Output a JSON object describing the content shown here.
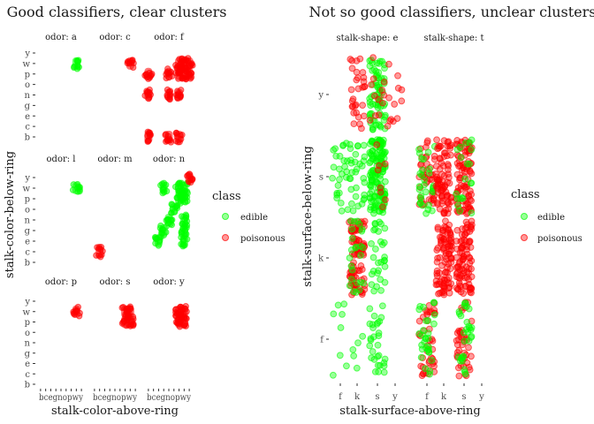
{
  "colors": {
    "edible": "#00ff00",
    "poisonous": "#ff0000"
  },
  "chart_data": [
    {
      "type": "scatter",
      "subtype": "jittered facet grid",
      "title": "Good classifiers, clear clusters",
      "xlabel": "stalk-color-above-ring",
      "ylabel": "stalk-color-below-ring",
      "x_levels": [
        "b",
        "c",
        "e",
        "g",
        "n",
        "o",
        "p",
        "w",
        "y"
      ],
      "y_levels": [
        "b",
        "c",
        "e",
        "g",
        "n",
        "o",
        "p",
        "w",
        "y"
      ],
      "grid": false,
      "legend": {
        "title": "class",
        "position": "right",
        "entries": [
          "edible",
          "poisonous"
        ]
      },
      "facets": [
        {
          "label": "odor: a",
          "points": [
            {
              "x": "w",
              "y": "w",
              "class": "edible"
            }
          ]
        },
        {
          "label": "odor: c",
          "points": [
            {
              "x": "w",
              "y": "w",
              "class": "poisonous"
            }
          ]
        },
        {
          "label": "odor: f",
          "points": [
            {
              "x": "b",
              "y": "b",
              "class": "poisonous"
            },
            {
              "x": "b",
              "y": "n",
              "class": "poisonous"
            },
            {
              "x": "b",
              "y": "p",
              "class": "poisonous"
            },
            {
              "x": "n",
              "y": "b",
              "class": "poisonous"
            },
            {
              "x": "n",
              "y": "n",
              "class": "poisonous"
            },
            {
              "x": "n",
              "y": "p",
              "class": "poisonous"
            },
            {
              "x": "p",
              "y": "b",
              "class": "poisonous"
            },
            {
              "x": "p",
              "y": "n",
              "class": "poisonous"
            },
            {
              "x": "p",
              "y": "p",
              "class": "poisonous"
            },
            {
              "x": "p",
              "y": "w",
              "class": "poisonous"
            },
            {
              "x": "w",
              "y": "p",
              "class": "poisonous"
            },
            {
              "x": "w",
              "y": "w",
              "class": "poisonous"
            },
            {
              "x": "y",
              "y": "p",
              "class": "poisonous"
            },
            {
              "x": "y",
              "y": "w",
              "class": "poisonous"
            }
          ]
        },
        {
          "label": "odor: l",
          "points": [
            {
              "x": "w",
              "y": "w",
              "class": "edible"
            }
          ]
        },
        {
          "label": "odor: m",
          "points": [
            {
              "x": "c",
              "y": "c",
              "class": "poisonous"
            }
          ]
        },
        {
          "label": "odor: n",
          "points": [
            {
              "x": "e",
              "y": "e",
              "class": "edible"
            },
            {
              "x": "g",
              "y": "g",
              "class": "edible"
            },
            {
              "x": "g",
              "y": "w",
              "class": "edible"
            },
            {
              "x": "n",
              "y": "n",
              "class": "edible"
            },
            {
              "x": "o",
              "y": "o",
              "class": "edible"
            },
            {
              "x": "p",
              "y": "p",
              "class": "edible"
            },
            {
              "x": "p",
              "y": "w",
              "class": "edible"
            },
            {
              "x": "w",
              "y": "e",
              "class": "edible"
            },
            {
              "x": "w",
              "y": "g",
              "class": "edible"
            },
            {
              "x": "w",
              "y": "n",
              "class": "edible"
            },
            {
              "x": "w",
              "y": "p",
              "class": "edible"
            },
            {
              "x": "w",
              "y": "w",
              "class": "edible"
            },
            {
              "x": "y",
              "y": "y",
              "class": "poisonous"
            }
          ]
        },
        {
          "label": "odor: p",
          "points": [
            {
              "x": "w",
              "y": "w",
              "class": "poisonous"
            }
          ]
        },
        {
          "label": "odor: s",
          "points": [
            {
              "x": "p",
              "y": "p",
              "class": "poisonous"
            },
            {
              "x": "p",
              "y": "w",
              "class": "poisonous"
            },
            {
              "x": "w",
              "y": "p",
              "class": "poisonous"
            },
            {
              "x": "w",
              "y": "w",
              "class": "poisonous"
            }
          ]
        },
        {
          "label": "odor: y",
          "points": [
            {
              "x": "p",
              "y": "p",
              "class": "poisonous"
            },
            {
              "x": "p",
              "y": "w",
              "class": "poisonous"
            },
            {
              "x": "w",
              "y": "p",
              "class": "poisonous"
            },
            {
              "x": "w",
              "y": "w",
              "class": "poisonous"
            }
          ]
        }
      ]
    },
    {
      "type": "scatter",
      "subtype": "jittered facet grid",
      "title": "Not so good classifiers, unclear clusters",
      "xlabel": "stalk-surface-above-ring",
      "ylabel": "stalk-surface-below-ring",
      "x_levels": [
        "f",
        "k",
        "s",
        "y"
      ],
      "y_levels": [
        "f",
        "k",
        "s",
        "y"
      ],
      "grid": false,
      "legend": {
        "title": "class",
        "position": "right",
        "entries": [
          "edible",
          "poisonous"
        ]
      },
      "facets": [
        {
          "label": "stalk-shape: e",
          "points": [
            {
              "x": "k",
              "y": "y",
              "class": "poisonous",
              "count": 30
            },
            {
              "x": "s",
              "y": "y",
              "class": "edible",
              "count": 70
            },
            {
              "x": "s",
              "y": "y",
              "class": "poisonous",
              "count": 12
            },
            {
              "x": "y",
              "y": "y",
              "class": "poisonous",
              "count": 12
            },
            {
              "x": "f",
              "y": "s",
              "class": "edible",
              "count": 25
            },
            {
              "x": "k",
              "y": "s",
              "class": "edible",
              "count": 30
            },
            {
              "x": "s",
              "y": "s",
              "class": "edible",
              "count": 140
            },
            {
              "x": "s",
              "y": "s",
              "class": "poisonous",
              "count": 8
            },
            {
              "x": "k",
              "y": "k",
              "class": "poisonous",
              "count": 90
            },
            {
              "x": "k",
              "y": "k",
              "class": "edible",
              "count": 25
            },
            {
              "x": "s",
              "y": "k",
              "class": "edible",
              "count": 30
            },
            {
              "x": "f",
              "y": "f",
              "class": "edible",
              "count": 8
            },
            {
              "x": "k",
              "y": "f",
              "class": "edible",
              "count": 5
            },
            {
              "x": "s",
              "y": "f",
              "class": "edible",
              "count": 30
            }
          ]
        },
        {
          "label": "stalk-shape: t",
          "points": [
            {
              "x": "f",
              "y": "s",
              "class": "poisonous",
              "count": 40
            },
            {
              "x": "f",
              "y": "s",
              "class": "edible",
              "count": 30
            },
            {
              "x": "k",
              "y": "s",
              "class": "poisonous",
              "count": 80
            },
            {
              "x": "s",
              "y": "s",
              "class": "poisonous",
              "count": 90
            },
            {
              "x": "s",
              "y": "s",
              "class": "edible",
              "count": 20
            },
            {
              "x": "k",
              "y": "k",
              "class": "poisonous",
              "count": 90
            },
            {
              "x": "s",
              "y": "k",
              "class": "poisonous",
              "count": 90
            },
            {
              "x": "f",
              "y": "f",
              "class": "poisonous",
              "count": 40
            },
            {
              "x": "f",
              "y": "f",
              "class": "edible",
              "count": 30
            },
            {
              "x": "s",
              "y": "f",
              "class": "poisonous",
              "count": 40
            },
            {
              "x": "s",
              "y": "f",
              "class": "edible",
              "count": 30
            }
          ]
        }
      ]
    }
  ]
}
